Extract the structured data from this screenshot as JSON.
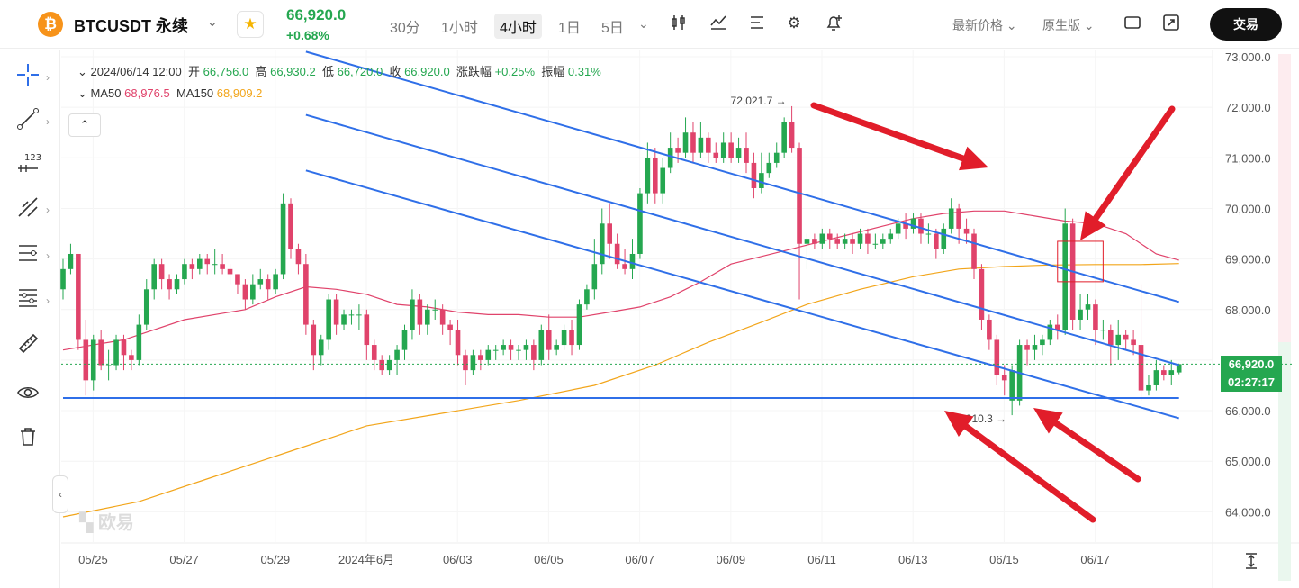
{
  "header": {
    "coin_icon": "₿",
    "symbol": "BTCUSDT 永续",
    "symbol_dropdown_icon": "chevron-down-icon",
    "favorite_icon": "★",
    "last_price": "66,920.0",
    "change_pct": "+0.68%",
    "timeframes": [
      "30分",
      "1小时",
      "4小时",
      "1日",
      "5日"
    ],
    "active_timeframe": "4小时",
    "price_type": "最新价格",
    "chart_version": "原生版",
    "trade_button": "交易",
    "colors": {
      "up": "#25a750",
      "down": "#e0436b",
      "trend_line": "#2f6fe8",
      "ma50": "#e0436b",
      "ma150": "#f2a51a",
      "annotation": "#e11d2a"
    }
  },
  "legend": {
    "date": "2024/06/14 12:00",
    "open_label": "开",
    "open": "66,756.0",
    "high_label": "高",
    "high": "66,930.2",
    "low_label": "低",
    "low": "66,720.0",
    "close_label": "收",
    "close": "66,920.0",
    "change_label": "涨跌幅",
    "change": "+0.25%",
    "amp_label": "振幅",
    "amp": "0.31%",
    "ma50_label": "MA50",
    "ma50": "68,976.5",
    "ma150_label": "MA150",
    "ma150": "68,909.2"
  },
  "price_tag": {
    "price": "66,920.0",
    "countdown": "02:27:17"
  },
  "watermark": "欧易",
  "chart_data": {
    "type": "candlestick",
    "title": "BTCUSDT 永续 4小时",
    "ylim": [
      63500,
      73300
    ],
    "y_ticks": [
      "73,000.0",
      "72,000.0",
      "71,000.0",
      "70,000.0",
      "69,000.0",
      "68,000.0",
      "67,000.0",
      "66,000.0",
      "65,000.0",
      "64,000.0"
    ],
    "x_ticks": [
      "05/25",
      "05/27",
      "05/29",
      "2024年6月",
      "06/03",
      "06/05",
      "06/07",
      "06/09",
      "06/11",
      "06/13",
      "06/15",
      "06/17"
    ],
    "start_date": "2024-05-23 20:00",
    "bar_hours": 4,
    "candles": [
      [
        68400,
        68800,
        68200,
        69000
      ],
      [
        68800,
        69100,
        68700,
        69300
      ],
      [
        69100,
        67400,
        67200,
        69100
      ],
      [
        67400,
        66600,
        66300,
        67800
      ],
      [
        66600,
        67400,
        66400,
        67500
      ],
      [
        67400,
        66900,
        66800,
        67600
      ],
      [
        66900,
        66900,
        66600,
        67200
      ],
      [
        66900,
        67400,
        66800,
        67500
      ],
      [
        67400,
        67100,
        66800,
        67500
      ],
      [
        67100,
        67000,
        66800,
        67200
      ],
      [
        67000,
        67700,
        66900,
        67900
      ],
      [
        67700,
        68400,
        67600,
        68600
      ],
      [
        68400,
        68900,
        68200,
        69000
      ],
      [
        68900,
        68600,
        68400,
        69000
      ],
      [
        68600,
        68400,
        68200,
        68700
      ],
      [
        68400,
        68600,
        68300,
        68700
      ],
      [
        68600,
        68900,
        68500,
        69000
      ],
      [
        68900,
        68800,
        68600,
        69000
      ],
      [
        68800,
        69000,
        68700,
        69100
      ],
      [
        69000,
        68900,
        68700,
        69100
      ],
      [
        68900,
        68900,
        68700,
        69200
      ],
      [
        68900,
        68800,
        68700,
        69100
      ],
      [
        68800,
        68700,
        68500,
        68900
      ],
      [
        68700,
        68500,
        68300,
        68700
      ],
      [
        68500,
        68200,
        68000,
        68600
      ],
      [
        68200,
        68500,
        68100,
        68700
      ],
      [
        68500,
        68600,
        68400,
        68800
      ],
      [
        68600,
        68400,
        68200,
        68700
      ],
      [
        68400,
        68700,
        68300,
        68800
      ],
      [
        68700,
        70100,
        68600,
        70300
      ],
      [
        70100,
        69200,
        69000,
        70200
      ],
      [
        69200,
        68900,
        68700,
        69300
      ],
      [
        68900,
        67700,
        67500,
        69100
      ],
      [
        67700,
        67100,
        66800,
        67800
      ],
      [
        67100,
        67400,
        66900,
        67500
      ],
      [
        67400,
        68200,
        67200,
        68300
      ],
      [
        68200,
        67700,
        67500,
        68300
      ],
      [
        67700,
        67900,
        67600,
        68000
      ],
      [
        67900,
        67900,
        67700,
        68000
      ],
      [
        67900,
        67900,
        67600,
        68100
      ],
      [
        67900,
        67300,
        67000,
        68000
      ],
      [
        67300,
        67000,
        66800,
        67400
      ],
      [
        67000,
        66800,
        66700,
        67100
      ],
      [
        66800,
        67000,
        66700,
        67100
      ],
      [
        67000,
        67200,
        66700,
        67300
      ],
      [
        67200,
        67600,
        67000,
        67700
      ],
      [
        67600,
        68200,
        67400,
        68400
      ],
      [
        68200,
        67700,
        67500,
        68300
      ],
      [
        67700,
        68000,
        67500,
        68100
      ],
      [
        68000,
        68000,
        67800,
        68200
      ],
      [
        68000,
        67700,
        67500,
        68100
      ],
      [
        67700,
        67600,
        67300,
        67800
      ],
      [
        67600,
        67100,
        66900,
        67800
      ],
      [
        67100,
        66800,
        66500,
        67200
      ],
      [
        66800,
        67100,
        66700,
        67200
      ],
      [
        67100,
        67000,
        66800,
        67200
      ],
      [
        67000,
        67200,
        66900,
        67300
      ],
      [
        67200,
        67200,
        67000,
        67300
      ],
      [
        67200,
        67300,
        67100,
        67400
      ],
      [
        67300,
        67200,
        67000,
        67400
      ],
      [
        67200,
        67200,
        67000,
        67300
      ],
      [
        67200,
        67300,
        67000,
        67400
      ],
      [
        67300,
        67000,
        66800,
        67400
      ],
      [
        67000,
        67600,
        66900,
        67700
      ],
      [
        67600,
        67200,
        67000,
        67900
      ],
      [
        67200,
        67300,
        67100,
        67400
      ],
      [
        67300,
        67600,
        67200,
        67700
      ],
      [
        67600,
        67300,
        67100,
        67800
      ],
      [
        67300,
        68100,
        67200,
        68200
      ],
      [
        68100,
        68400,
        68000,
        68500
      ],
      [
        68400,
        68900,
        68200,
        69400
      ],
      [
        68900,
        69700,
        68700,
        70000
      ],
      [
        69700,
        69300,
        69000,
        70100
      ],
      [
        69300,
        68900,
        68800,
        69500
      ],
      [
        68900,
        68800,
        68700,
        69200
      ],
      [
        68800,
        69100,
        68600,
        69400
      ],
      [
        69100,
        70300,
        69000,
        70400
      ],
      [
        70300,
        71000,
        70100,
        71300
      ],
      [
        71000,
        70300,
        70100,
        71200
      ],
      [
        70300,
        70800,
        70100,
        71000
      ],
      [
        70800,
        71200,
        70700,
        71500
      ],
      [
        71200,
        71100,
        70900,
        71400
      ],
      [
        71100,
        71500,
        71000,
        71800
      ],
      [
        71500,
        71100,
        70900,
        71700
      ],
      [
        71100,
        71400,
        71000,
        71700
      ],
      [
        71400,
        71100,
        70900,
        71500
      ],
      [
        71100,
        71000,
        70900,
        71300
      ],
      [
        71000,
        71300,
        70900,
        71500
      ],
      [
        71300,
        71000,
        70900,
        71500
      ],
      [
        71000,
        71200,
        70900,
        71400
      ],
      [
        71200,
        70900,
        70700,
        71500
      ],
      [
        70900,
        70400,
        70200,
        71100
      ],
      [
        70400,
        70700,
        70300,
        71100
      ],
      [
        70700,
        70900,
        70600,
        71100
      ],
      [
        70900,
        71100,
        70800,
        71300
      ],
      [
        71100,
        71700,
        71000,
        71800
      ],
      [
        71700,
        71200,
        71100,
        72021.7
      ],
      [
        71200,
        69300,
        68200,
        71300
      ],
      [
        69300,
        69400,
        68800,
        69500
      ],
      [
        69400,
        69300,
        69200,
        69500
      ],
      [
        69300,
        69500,
        69200,
        69600
      ],
      [
        69500,
        69400,
        69200,
        69600
      ],
      [
        69400,
        69300,
        69200,
        69500
      ],
      [
        69300,
        69400,
        69200,
        69500
      ],
      [
        69400,
        69300,
        69100,
        69500
      ],
      [
        69300,
        69500,
        69200,
        69600
      ],
      [
        69500,
        69300,
        69100,
        69600
      ],
      [
        69300,
        69300,
        69200,
        69500
      ],
      [
        69300,
        69400,
        69200,
        69500
      ],
      [
        69400,
        69500,
        69300,
        69600
      ],
      [
        69500,
        69700,
        69400,
        69800
      ],
      [
        69700,
        69600,
        69400,
        69900
      ],
      [
        69600,
        69800,
        69500,
        69900
      ],
      [
        69800,
        69500,
        69300,
        69900
      ],
      [
        69500,
        69500,
        69300,
        69700
      ],
      [
        69500,
        69200,
        69000,
        69600
      ],
      [
        69200,
        69600,
        69100,
        69700
      ],
      [
        69600,
        70000,
        69500,
        70200
      ],
      [
        70000,
        69600,
        69300,
        70100
      ],
      [
        69600,
        69500,
        69300,
        69800
      ],
      [
        69500,
        68800,
        68600,
        69600
      ],
      [
        68800,
        67800,
        67600,
        68900
      ],
      [
        67800,
        67400,
        67200,
        67900
      ],
      [
        67400,
        66700,
        66500,
        67500
      ],
      [
        66700,
        66600,
        66300,
        66900
      ],
      [
        66200,
        66800,
        65910.3,
        66900
      ],
      [
        66200,
        67300,
        66100,
        67400
      ],
      [
        67300,
        67200,
        66900,
        67400
      ],
      [
        67200,
        67300,
        67000,
        67500
      ],
      [
        67300,
        67400,
        67100,
        67500
      ],
      [
        67400,
        67700,
        67300,
        67800
      ],
      [
        67700,
        67600,
        67400,
        67900
      ],
      [
        67600,
        69700,
        67500,
        70000
      ],
      [
        69700,
        67800,
        67600,
        69800
      ],
      [
        67800,
        68000,
        67600,
        68300
      ],
      [
        68000,
        68100,
        67800,
        68300
      ],
      [
        68100,
        67600,
        67300,
        68200
      ],
      [
        67600,
        67600,
        67400,
        67800
      ],
      [
        67600,
        67300,
        66900,
        67700
      ],
      [
        67300,
        67500,
        67000,
        67800
      ],
      [
        67500,
        67400,
        67200,
        67600
      ],
      [
        67400,
        67300,
        67100,
        67600
      ],
      [
        67300,
        66400,
        66200,
        68500
      ],
      [
        66400,
        66500,
        66300,
        66700
      ],
      [
        66500,
        66800,
        66400,
        67000
      ],
      [
        66800,
        66700,
        66600,
        66900
      ],
      [
        66700,
        66800,
        66500,
        67000
      ],
      [
        66756,
        66920,
        66720,
        66930.2
      ]
    ],
    "ma50": [
      [
        0,
        67200
      ],
      [
        8,
        67400
      ],
      [
        16,
        67800
      ],
      [
        24,
        68000
      ],
      [
        28,
        68250
      ],
      [
        32,
        68450
      ],
      [
        36,
        68400
      ],
      [
        40,
        68300
      ],
      [
        44,
        68100
      ],
      [
        48,
        68050
      ],
      [
        52,
        67950
      ],
      [
        56,
        67900
      ],
      [
        60,
        67900
      ],
      [
        64,
        67850
      ],
      [
        68,
        67850
      ],
      [
        72,
        67950
      ],
      [
        76,
        68050
      ],
      [
        80,
        68250
      ],
      [
        84,
        68550
      ],
      [
        88,
        68900
      ],
      [
        92,
        69050
      ],
      [
        96,
        69200
      ],
      [
        100,
        69350
      ],
      [
        104,
        69500
      ],
      [
        108,
        69650
      ],
      [
        112,
        69800
      ],
      [
        116,
        69900
      ],
      [
        120,
        69950
      ],
      [
        124,
        69950
      ],
      [
        128,
        69850
      ],
      [
        132,
        69750
      ],
      [
        136,
        69700
      ],
      [
        140,
        69500
      ],
      [
        144,
        69100
      ],
      [
        147,
        68976.5
      ]
    ],
    "ma150": [
      [
        0,
        63900
      ],
      [
        10,
        64200
      ],
      [
        20,
        64700
      ],
      [
        30,
        65200
      ],
      [
        40,
        65700
      ],
      [
        50,
        65950
      ],
      [
        60,
        66200
      ],
      [
        70,
        66500
      ],
      [
        78,
        66900
      ],
      [
        85,
        67350
      ],
      [
        92,
        67750
      ],
      [
        98,
        68100
      ],
      [
        105,
        68400
      ],
      [
        112,
        68650
      ],
      [
        118,
        68800
      ],
      [
        124,
        68850
      ],
      [
        130,
        68880
      ],
      [
        136,
        68890
      ],
      [
        142,
        68890
      ],
      [
        147,
        68909.2
      ]
    ],
    "trend_lines": [
      {
        "name": "upper-channel",
        "p1": [
          "2024-05-29 04:00",
          73100
        ],
        "p2": [
          "2024-06-17 08:00",
          68150
        ]
      },
      {
        "name": "middle-channel",
        "p1": [
          "2024-05-29 04:00",
          71850
        ],
        "p2": [
          "2024-06-17 08:00",
          66900
        ]
      },
      {
        "name": "lower-channel",
        "p1": [
          "2024-05-29 04:00",
          70750
        ],
        "p2": [
          "2024-06-17 08:00",
          65850
        ]
      },
      {
        "name": "support-line",
        "p1": [
          "2024-05-23 20:00",
          66250
        ],
        "p2": [
          "2024-06-17 08:00",
          66250
        ]
      }
    ],
    "annotations": {
      "high_label": "72,021.7",
      "low_label": "65,910.3",
      "arrow_glyph": "→",
      "box": {
        "t1": "2024-06-14 16:00",
        "t2": "2024-06-15 16:00",
        "y1": 68550,
        "y2": 69350
      }
    }
  }
}
